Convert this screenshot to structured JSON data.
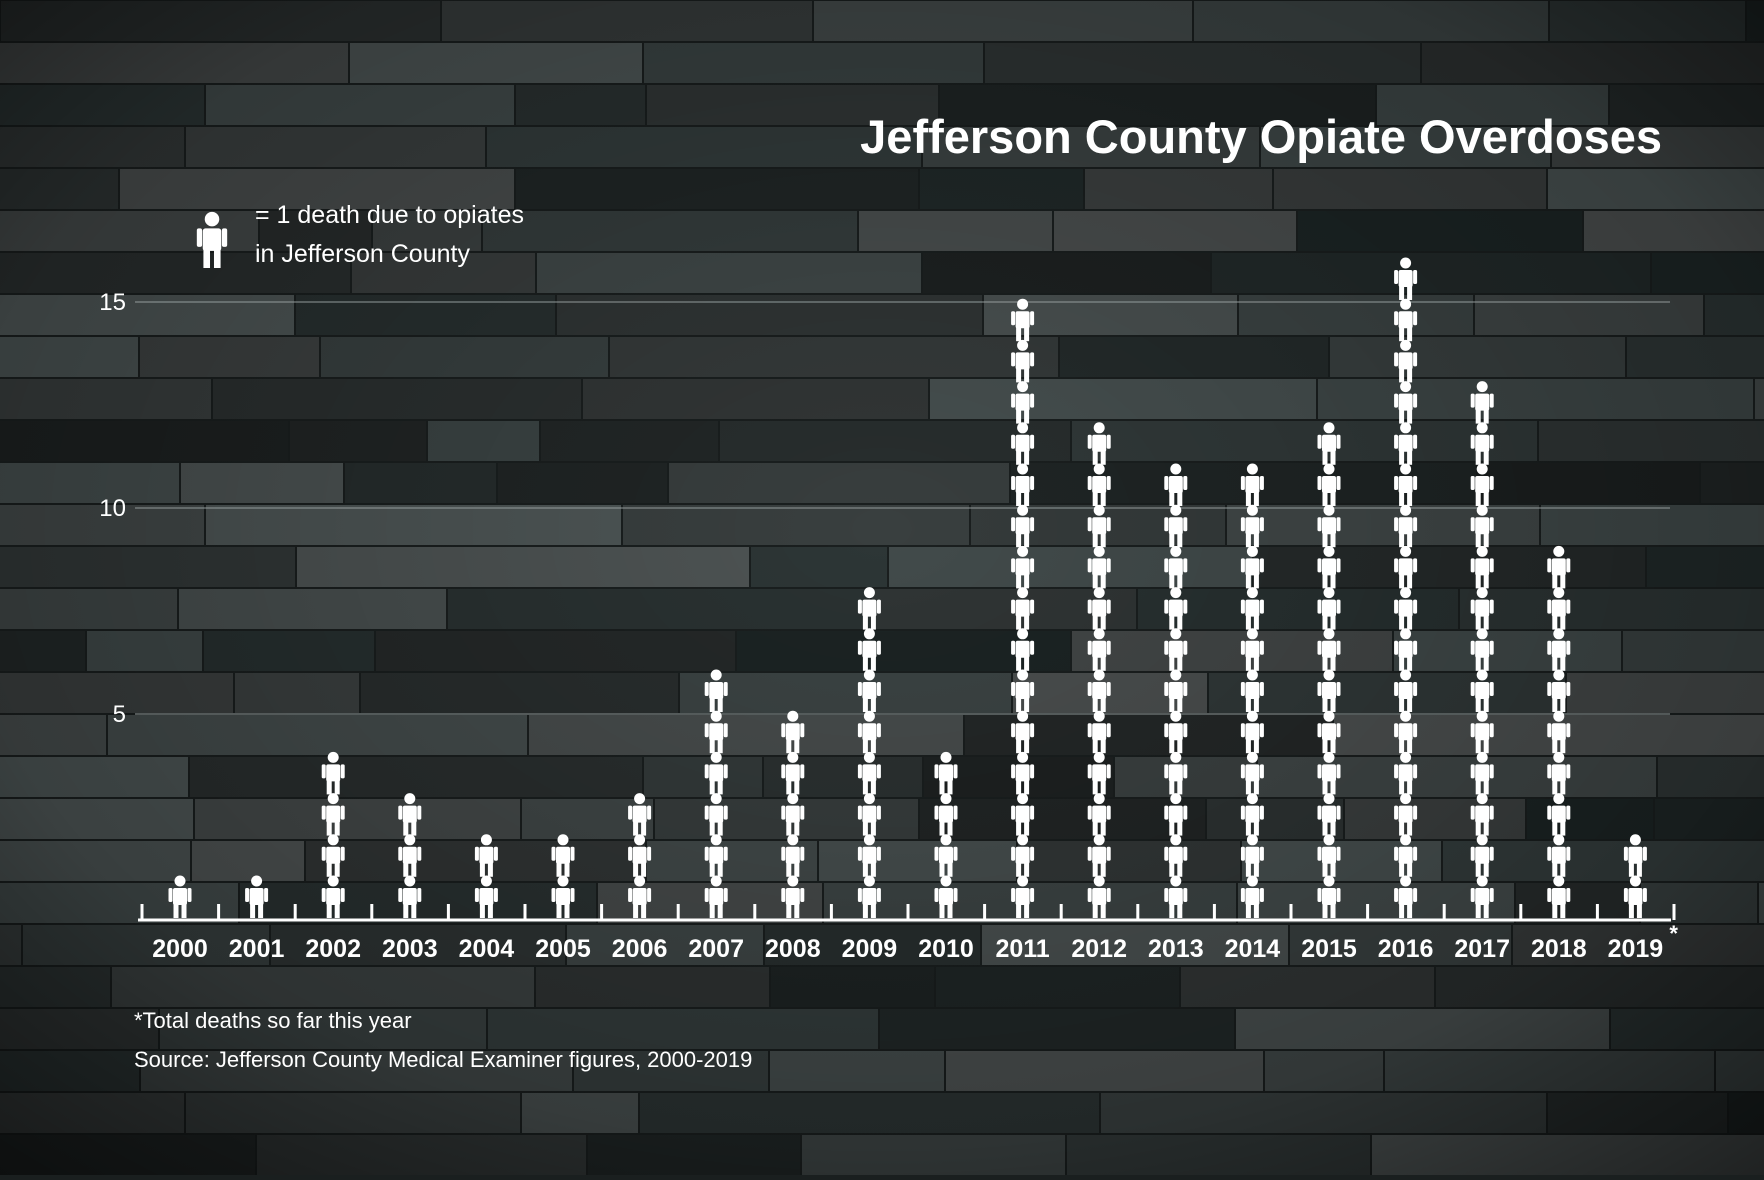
{
  "chart_data": {
    "type": "bar",
    "title": "Jefferson County Opiate Overdoses",
    "legend": {
      "line1": "= 1 death due to opiates",
      "line2": "in Jefferson County",
      "icon": "person-icon"
    },
    "categories": [
      "2000",
      "2001",
      "2002",
      "2003",
      "2004",
      "2005",
      "2006",
      "2007",
      "2008",
      "2009",
      "2010",
      "2011",
      "2012",
      "2013",
      "2014",
      "2015",
      "2016",
      "2017",
      "2018",
      "2019"
    ],
    "values": [
      1,
      1,
      4,
      3,
      2,
      2,
      3,
      6,
      5,
      8,
      4,
      15,
      12,
      11,
      11,
      12,
      16,
      13,
      9,
      2
    ],
    "category_marker": {
      "2019": "*"
    },
    "ylim": [
      0,
      16
    ],
    "yticks": [
      5,
      10,
      15
    ],
    "grid": true,
    "footnote": "*Total deaths so far this year",
    "source": "Source: Jefferson County Medical Examiner figures, 2000-2019",
    "colors": {
      "background": "#1a1f1f",
      "stone_light": "#5c6666",
      "stone_dark": "#222828",
      "icon": "#ffffff",
      "text": "#ffffff",
      "grid": "#9aa3a3"
    }
  }
}
